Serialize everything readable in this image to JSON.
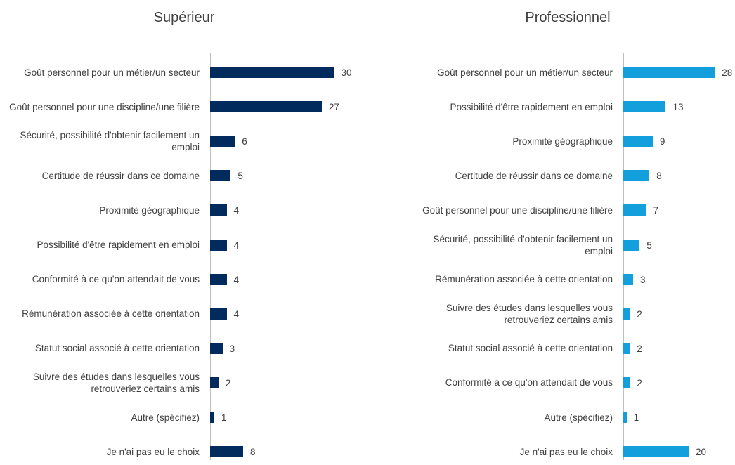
{
  "chart_data": [
    {
      "type": "bar",
      "orientation": "horizontal",
      "title": "Supérieur",
      "color": "#002b5c",
      "xlim": [
        0,
        34
      ],
      "categories": [
        "Goût personnel pour un métier/un secteur",
        "Goût personnel pour une discipline/une filière",
        "Sécurité, possibilité d'obtenir facilement un emploi",
        "Certitude de réussir dans ce domaine",
        "Proximité géographique",
        "Possibilité d'être rapidement en emploi",
        "Conformité à ce qu'on attendait de vous",
        "Rémunération associée à cette orientation",
        "Statut social associé à cette orientation",
        "Suivre des études dans lesquelles vous retrouveriez certains amis",
        "Autre (spécifiez)",
        "Je n'ai pas eu le choix"
      ],
      "values": [
        30,
        27,
        6,
        5,
        4,
        4,
        4,
        4,
        3,
        2,
        1,
        8
      ]
    },
    {
      "type": "bar",
      "orientation": "horizontal",
      "title": "Professionnel",
      "color": "#129fdc",
      "xlim": [
        0,
        43
      ],
      "categories": [
        "Goût personnel pour un métier/un secteur",
        "Possibilité d'être rapidement en emploi",
        "Proximité géographique",
        "Certitude de réussir dans ce domaine",
        "Goût personnel pour une discipline/une filière",
        "Sécurité, possibilité d'obtenir facilement un emploi",
        "Rémunération associée à cette orientation",
        "Suivre des études dans lesquelles vous retrouveriez certains amis",
        "Statut social associé à cette orientation",
        "Conformité à ce qu'on attendait de vous",
        "Autre (spécifiez)",
        "Je n'ai pas eu le choix"
      ],
      "values": [
        28,
        13,
        9,
        8,
        7,
        5,
        3,
        2,
        2,
        2,
        1,
        20
      ]
    }
  ]
}
